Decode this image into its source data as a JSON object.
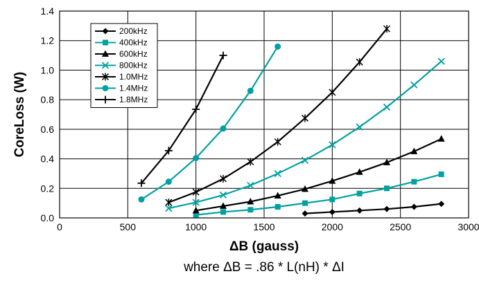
{
  "chart_data": {
    "type": "line",
    "xlabel": "ΔB (gauss)",
    "ylabel": "CoreLoss (W)",
    "caption": "where ΔB = .86 * L(nH) * ΔI",
    "xlim": [
      0,
      3000
    ],
    "ylim": [
      0,
      1.4
    ],
    "xticks": [
      "0",
      "500",
      "1000",
      "1500",
      "2000",
      "2500",
      "3000"
    ],
    "yticks": [
      "0.0",
      "0.2",
      "0.4",
      "0.6",
      "0.8",
      "1.0",
      "1.2",
      "1.4"
    ],
    "grid": true,
    "legend_position": "top-left",
    "series": [
      {
        "name": "200kHz",
        "color": "#000000",
        "marker": "diamond",
        "x": [
          1800,
          2000,
          2200,
          2400,
          2600,
          2800
        ],
        "y": [
          0.03,
          0.04,
          0.05,
          0.06,
          0.075,
          0.095
        ]
      },
      {
        "name": "400kHz",
        "color": "#00a0a0",
        "marker": "square",
        "x": [
          1000,
          1200,
          1400,
          1600,
          1800,
          2000,
          2200,
          2400,
          2600,
          2800
        ],
        "y": [
          0.02,
          0.04,
          0.055,
          0.075,
          0.1,
          0.125,
          0.165,
          0.2,
          0.245,
          0.295
        ]
      },
      {
        "name": "600kHz",
        "color": "#000000",
        "marker": "triangle",
        "x": [
          1000,
          1200,
          1400,
          1600,
          1800,
          2000,
          2200,
          2400,
          2600,
          2800
        ],
        "y": [
          0.05,
          0.08,
          0.11,
          0.15,
          0.195,
          0.25,
          0.31,
          0.375,
          0.45,
          0.535
        ]
      },
      {
        "name": "800kHz",
        "color": "#00a0a0",
        "marker": "x",
        "x": [
          800,
          1000,
          1200,
          1400,
          1600,
          1800,
          2000,
          2200,
          2400,
          2600,
          2800
        ],
        "y": [
          0.065,
          0.105,
          0.155,
          0.22,
          0.3,
          0.39,
          0.495,
          0.615,
          0.75,
          0.9,
          1.06
        ]
      },
      {
        "name": "1.0MHz",
        "color": "#000000",
        "marker": "star",
        "x": [
          800,
          1000,
          1200,
          1400,
          1600,
          1800,
          2000,
          2200,
          2400
        ],
        "y": [
          0.105,
          0.175,
          0.265,
          0.38,
          0.515,
          0.675,
          0.85,
          1.055,
          1.28
        ]
      },
      {
        "name": "1.4MHz",
        "color": "#00a0a0",
        "marker": "circle",
        "x": [
          600,
          800,
          1000,
          1200,
          1400,
          1600
        ],
        "y": [
          0.125,
          0.245,
          0.405,
          0.605,
          0.86,
          1.16
        ]
      },
      {
        "name": "1.8MHz",
        "color": "#000000",
        "marker": "plus",
        "x": [
          600,
          800,
          1000,
          1200
        ],
        "y": [
          0.235,
          0.455,
          0.735,
          1.1
        ]
      }
    ]
  }
}
